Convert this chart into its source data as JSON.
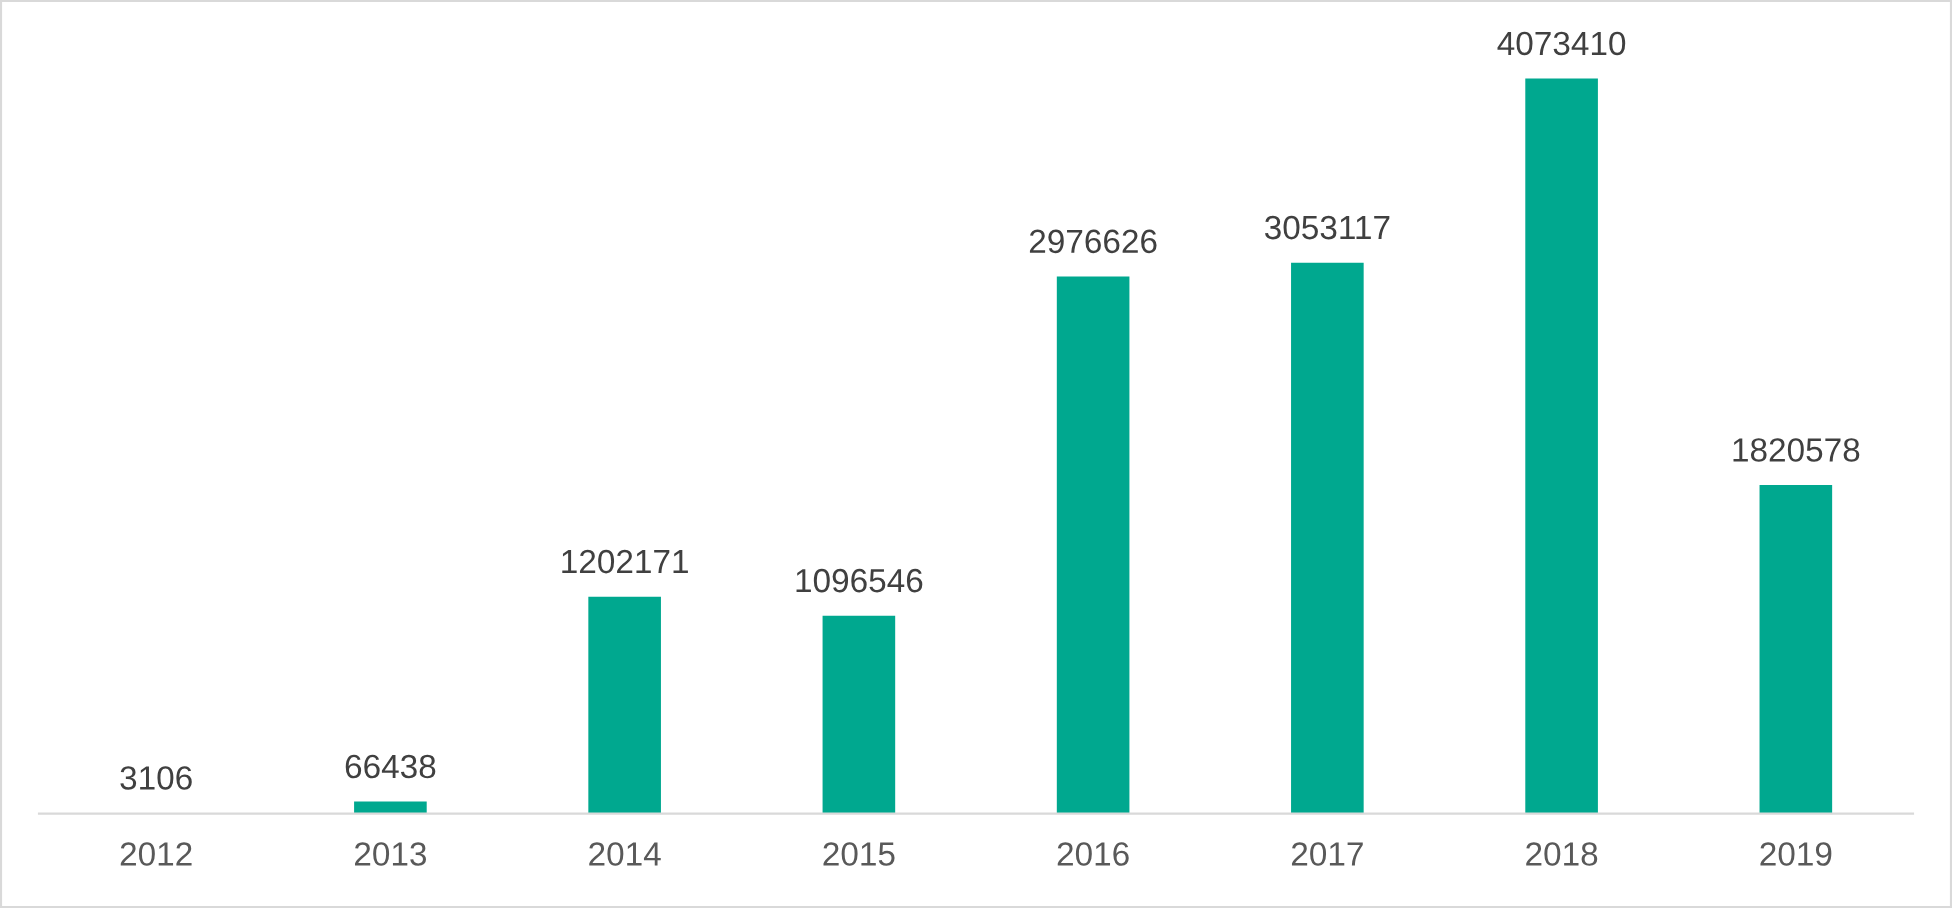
{
  "chart_data": {
    "type": "bar",
    "categories": [
      "2012",
      "2013",
      "2014",
      "2015",
      "2016",
      "2017",
      "2018",
      "2019"
    ],
    "values": [
      3106,
      66438,
      1202171,
      1096546,
      2976626,
      3053117,
      4073410,
      1820578
    ],
    "color": "#00a88f",
    "data_labels": true,
    "grid": false,
    "legend": false,
    "tick_labels": "x"
  }
}
